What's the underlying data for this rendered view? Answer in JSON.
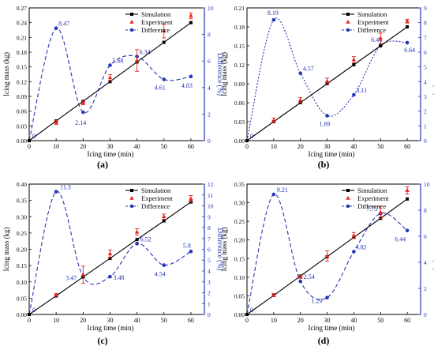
{
  "colors": {
    "simulation": "#000000",
    "experiment": "#e8231f",
    "difference": "#2634b6",
    "axis": "#000000"
  },
  "legend_position": "top-right",
  "chart_data": [
    {
      "panel_label": "(a)",
      "type": "line",
      "xlabel": "Icing time (min)",
      "ylabel": "Icing mass (kg)",
      "y2label": "Difference (%)",
      "xlim": [
        0,
        65
      ],
      "xticks": [
        0,
        10,
        20,
        30,
        40,
        50,
        60
      ],
      "ylim": [
        0,
        0.27
      ],
      "yticks": [
        "0.00",
        "0.03",
        "0.06",
        "0.09",
        "0.12",
        "0.15",
        "0.18",
        "0.21",
        "0.24",
        "0.27"
      ],
      "y2lim": [
        0,
        10
      ],
      "y2ticks": [
        "0",
        "2",
        "4",
        "6",
        "8",
        "10"
      ],
      "legend": [
        "Simulation",
        "Experiment",
        "Difference"
      ],
      "series": [
        {
          "name": "Simulation",
          "x": [
            0,
            10,
            20,
            30,
            40,
            50,
            60
          ],
          "values": [
            0,
            0.04,
            0.08,
            0.12,
            0.16,
            0.2,
            0.24
          ]
        },
        {
          "name": "Experiment",
          "x": [
            10,
            20,
            30,
            40,
            50,
            60
          ],
          "values": [
            0.037,
            0.077,
            0.128,
            0.163,
            0.223,
            0.254
          ],
          "errors": [
            0.004,
            0.004,
            0.006,
            0.022,
            0.014,
            0.006
          ]
        },
        {
          "name": "Difference",
          "x": [
            0,
            10,
            20,
            30,
            40,
            50,
            60
          ],
          "values": [
            0,
            8.47,
            2.14,
            5.68,
            6.34,
            4.61,
            4.83
          ],
          "labels": [
            "0",
            "8.47",
            "2.14",
            "5.68",
            "6.34",
            "4.61",
            "4.83"
          ]
        }
      ]
    },
    {
      "panel_label": "(b)",
      "type": "line",
      "xlabel": "Icing time (min)",
      "ylabel": "Icing mass (kg)",
      "y2label": "Difference (%)",
      "xlim": [
        0,
        65
      ],
      "xticks": [
        0,
        10,
        20,
        30,
        40,
        50,
        60
      ],
      "ylim": [
        0,
        0.21
      ],
      "yticks": [
        "0.00",
        "0.03",
        "0.06",
        "0.09",
        "0.12",
        "0.15",
        "0.18",
        "0.21"
      ],
      "y2lim": [
        0,
        9
      ],
      "y2ticks": [
        "0",
        "1",
        "2",
        "3",
        "4",
        "5",
        "6",
        "7",
        "8",
        "9"
      ],
      "legend": [
        "Simulation",
        "Experiment",
        "Difference"
      ],
      "series": [
        {
          "name": "Simulation",
          "x": [
            0,
            10,
            20,
            30,
            40,
            50,
            60
          ],
          "values": [
            0,
            0.03,
            0.06,
            0.09,
            0.12,
            0.15,
            0.18
          ]
        },
        {
          "name": "Experiment",
          "x": [
            10,
            20,
            30,
            40,
            50,
            60
          ],
          "values": [
            0.032,
            0.064,
            0.094,
            0.128,
            0.162,
            0.189
          ],
          "errors": [
            0.004,
            0.004,
            0.005,
            0.005,
            0.008,
            0.003
          ]
        },
        {
          "name": "Difference",
          "x": [
            0,
            10,
            20,
            30,
            40,
            50,
            60
          ],
          "values": [
            0,
            8.19,
            4.57,
            1.69,
            3.11,
            6.44,
            6.64
          ],
          "labels": [
            "0",
            "8.19",
            "4.57",
            "1.69",
            "3.11",
            "6.44",
            "6.64"
          ]
        }
      ]
    },
    {
      "panel_label": "(c)",
      "type": "line",
      "xlabel": "Icing time (min)",
      "ylabel": "Icing mass (kg)",
      "y2label": "Difference (%)",
      "xlim": [
        0,
        65
      ],
      "xticks": [
        0,
        10,
        20,
        30,
        40,
        50,
        60
      ],
      "ylim": [
        0,
        0.4
      ],
      "yticks": [
        "0.00",
        "0.05",
        "0.10",
        "0.15",
        "0.20",
        "0.25",
        "0.30",
        "0.35",
        "0.40"
      ],
      "y2lim": [
        0,
        12
      ],
      "y2ticks": [
        "0",
        "1",
        "2",
        "3",
        "4",
        "5",
        "6",
        "7",
        "8",
        "9",
        "10",
        "11",
        "12"
      ],
      "legend": [
        "Simulation",
        "Experiment",
        "Difference"
      ],
      "series": [
        {
          "name": "Simulation",
          "x": [
            0,
            10,
            20,
            30,
            40,
            50,
            60
          ],
          "values": [
            0,
            0.057,
            0.115,
            0.172,
            0.23,
            0.287,
            0.345
          ]
        },
        {
          "name": "Experiment",
          "x": [
            10,
            20,
            30,
            40,
            50,
            60
          ],
          "values": [
            0.06,
            0.122,
            0.186,
            0.253,
            0.3,
            0.355
          ],
          "errors": [
            0.004,
            0.026,
            0.012,
            0.01,
            0.008,
            0.01
          ]
        },
        {
          "name": "Difference",
          "x": [
            0,
            10,
            20,
            30,
            40,
            50,
            60
          ],
          "values": [
            0,
            11.3,
            3.47,
            3.48,
            6.52,
            4.54,
            5.8
          ],
          "labels": [
            "0",
            "11.3",
            "3.47",
            "3.48",
            "6.52",
            "4.54",
            "5.8"
          ]
        }
      ]
    },
    {
      "panel_label": "(d)",
      "type": "line",
      "xlabel": "Icing time (min)",
      "ylabel": "Icing mass (kg)",
      "y2label": "Difference (%)",
      "xlim": [
        0,
        65
      ],
      "xticks": [
        0,
        10,
        20,
        30,
        40,
        50,
        60
      ],
      "ylim": [
        0,
        0.35
      ],
      "yticks": [
        "0.00",
        "0.05",
        "0.10",
        "0.15",
        "0.20",
        "0.25",
        "0.30",
        "0.35"
      ],
      "y2lim": [
        0,
        10
      ],
      "y2ticks": [
        "0",
        "2",
        "4",
        "6",
        "8",
        "10"
      ],
      "legend": [
        "Simulation",
        "Experiment",
        "Difference"
      ],
      "series": [
        {
          "name": "Simulation",
          "x": [
            0,
            10,
            20,
            30,
            40,
            50,
            60
          ],
          "values": [
            0,
            0.051,
            0.103,
            0.155,
            0.207,
            0.258,
            0.31
          ]
        },
        {
          "name": "Experiment",
          "x": [
            10,
            20,
            30,
            40,
            50,
            60
          ],
          "values": [
            0.052,
            0.101,
            0.157,
            0.212,
            0.274,
            0.333
          ],
          "errors": [
            0.004,
            0.004,
            0.014,
            0.008,
            0.016,
            0.01
          ]
        },
        {
          "name": "Difference",
          "x": [
            0,
            10,
            20,
            30,
            40,
            50,
            60
          ],
          "values": [
            0,
            9.21,
            2.54,
            1.29,
            4.82,
            7.75,
            6.44
          ],
          "labels": [
            "0",
            "9.21",
            "2.54",
            "1.29",
            "4.82",
            "7.75",
            "6.44"
          ]
        }
      ]
    }
  ]
}
